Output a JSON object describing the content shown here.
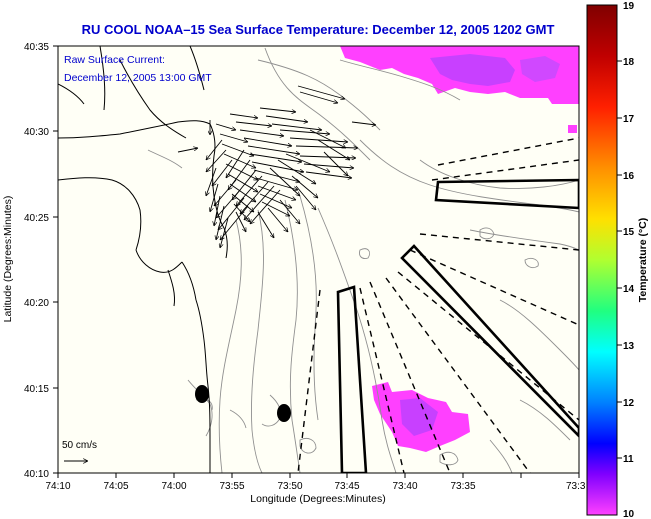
{
  "title": "RU COOL   NOAA–15  Sea Surface Temperature:  December 12, 2005 1202 GMT",
  "subtitle_line1": "Raw Surface Current:",
  "subtitle_line2": "December 12, 2005 13:00 GMT",
  "x_axis_label": "Longitude (Degrees:Minutes)",
  "y_axis_label": "Latitude (Degrees:Minutes)",
  "x_ticks": [
    "74:10",
    "74:05",
    "74:00",
    "73:55",
    "73:50",
    "73:45",
    "73:40",
    "73:35",
    "73:3"
  ],
  "y_ticks": [
    "40:35",
    "40:30",
    "40:25",
    "40:20",
    "40:15",
    "40:10"
  ],
  "colorbar": {
    "label": "Temperature (°C)",
    "min": 10,
    "max": 19,
    "ticks": [
      "19",
      "18",
      "17",
      "16",
      "15",
      "14",
      "13",
      "12",
      "11",
      "10"
    ]
  },
  "scale_label": "50 cm/s",
  "colors": {
    "title": "#0000cc",
    "warm_water": "#ff40ff",
    "cool_water": "#b040ff"
  }
}
